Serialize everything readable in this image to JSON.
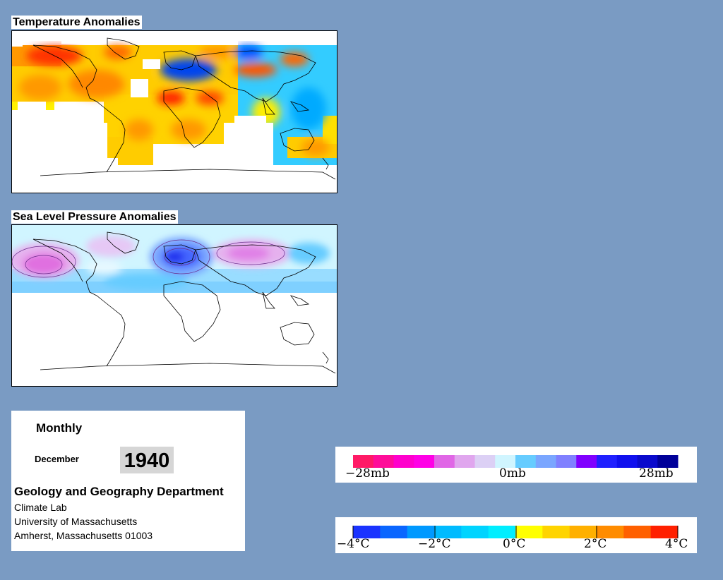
{
  "temperature": {
    "title": "Temperature Anomalies"
  },
  "pressure": {
    "title": "Sea Level Pressure Anomalies"
  },
  "info": {
    "mode": "Monthly",
    "month": "December",
    "year": "1940",
    "department": "Geology and Geography Department",
    "lines": [
      "Climate Lab",
      "University of Massachusetts",
      "Amherst, Massachusetts 01003"
    ]
  },
  "pressure_legend": {
    "colors": [
      "#ff1a66",
      "#ff0d99",
      "#ff00cc",
      "#ff00e6",
      "#e066e6",
      "#e0a6ee",
      "#dcd0f5",
      "#d0f5ff",
      "#66ccff",
      "#7aa6ff",
      "#8080ff",
      "#8000ff",
      "#2020ff",
      "#1010ee",
      "#0a0acc",
      "#000099"
    ],
    "labels": [
      "−28mb",
      "0mb",
      "28mb"
    ]
  },
  "temperature_legend": {
    "colors": [
      "#1a33ff",
      "#0a66ff",
      "#0099ff",
      "#00bbff",
      "#00d4ff",
      "#00eeff",
      "#ffff00",
      "#ffd400",
      "#ffb000",
      "#ff8c00",
      "#ff6000",
      "#ff2000"
    ],
    "labels": [
      "−4°C",
      "−2°C",
      "0°C",
      "2°C",
      "4°C"
    ]
  },
  "palette": {
    "background": "#7a9bc3",
    "coastline": "#000000"
  }
}
